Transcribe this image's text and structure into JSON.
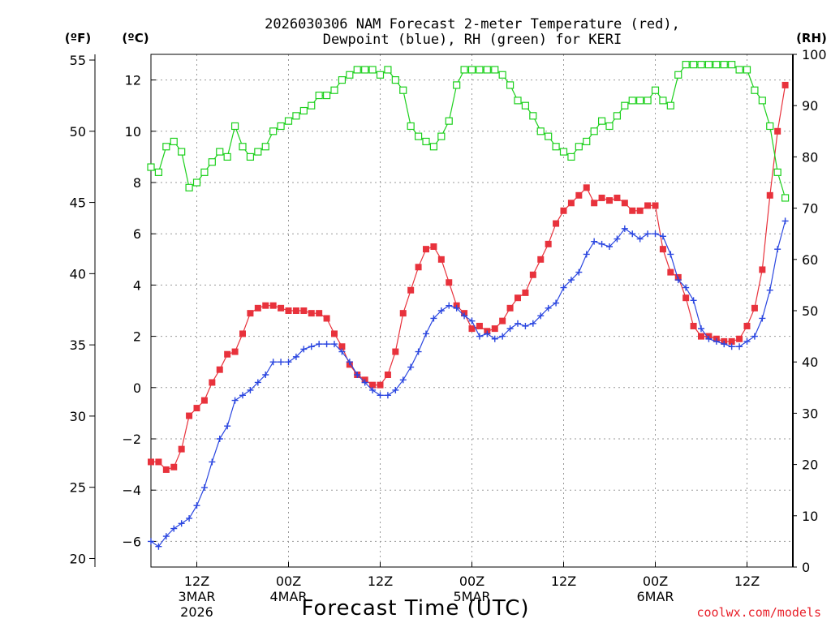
{
  "chart_data": {
    "type": "line",
    "title_line1": "2026030306 NAM Forecast 2-meter Temperature (red),",
    "title_line2": "Dewpoint (blue), RH (green) for KERI",
    "unit_left_f": "(ºF)",
    "unit_left_c": "(ºC)",
    "unit_right": "(RH)",
    "xlabel": "Forecast Time (UTC)",
    "credit": "coolwx.com/models",
    "hours_start": 6,
    "hours_end": 90,
    "ylim_c": [
      -7,
      13
    ],
    "ylim_rh": [
      0,
      100
    ],
    "y_ticks_c": [
      "-6",
      "-4",
      "-2",
      "0",
      "2",
      "4",
      "6",
      "8",
      "10",
      "12"
    ],
    "y_ticks_f": [
      "20",
      "25",
      "30",
      "35",
      "40",
      "45",
      "50",
      "55"
    ],
    "y_ticks_rh": [
      "0",
      "10",
      "20",
      "30",
      "40",
      "50",
      "60",
      "70",
      "80",
      "90",
      "100"
    ],
    "x_ticks": [
      {
        "hour": 12,
        "line1": "12Z",
        "line2": "3MAR",
        "line3": "2026"
      },
      {
        "hour": 24,
        "line1": "00Z",
        "line2": "4MAR",
        "line3": ""
      },
      {
        "hour": 36,
        "line1": "12Z",
        "line2": "",
        "line3": ""
      },
      {
        "hour": 48,
        "line1": "00Z",
        "line2": "5MAR",
        "line3": ""
      },
      {
        "hour": 60,
        "line1": "12Z",
        "line2": "",
        "line3": ""
      },
      {
        "hour": 72,
        "line1": "00Z",
        "line2": "6MAR",
        "line3": ""
      },
      {
        "hour": 84,
        "line1": "12Z",
        "line2": "",
        "line3": ""
      }
    ],
    "series": [
      {
        "name": "Temperature",
        "unit": "C",
        "color": "#e8323c",
        "marker": "filled-square",
        "values": [
          -2.9,
          -2.9,
          -3.2,
          -3.1,
          -2.4,
          -1.1,
          -0.8,
          -0.5,
          0.2,
          0.7,
          1.3,
          1.4,
          2.1,
          2.9,
          3.1,
          3.2,
          3.2,
          3.1,
          3.0,
          3.0,
          3.0,
          2.9,
          2.9,
          2.7,
          2.1,
          1.6,
          0.9,
          0.5,
          0.3,
          0.1,
          0.1,
          0.5,
          1.4,
          2.9,
          3.8,
          4.7,
          5.4,
          5.5,
          5.0,
          4.1,
          3.2,
          2.9,
          2.3,
          2.4,
          2.2,
          2.3,
          2.6,
          3.1,
          3.5,
          3.7,
          4.4,
          5.0,
          5.6,
          6.4,
          6.9,
          7.2,
          7.5,
          7.8,
          7.2,
          7.4,
          7.3,
          7.4,
          7.2,
          6.9,
          6.9,
          7.1,
          7.1,
          5.4,
          4.5,
          4.3,
          3.5,
          2.4,
          2.0,
          2.0,
          1.9,
          1.8,
          1.8,
          1.9,
          2.4,
          3.1,
          4.6,
          7.5,
          10.0,
          11.8
        ]
      },
      {
        "name": "Dewpoint",
        "unit": "C",
        "color": "#2a46e0",
        "marker": "plus",
        "values": [
          -6.0,
          -6.2,
          -5.8,
          -5.5,
          -5.3,
          -5.1,
          -4.6,
          -3.9,
          -2.9,
          -2.0,
          -1.5,
          -0.5,
          -0.3,
          -0.1,
          0.2,
          0.5,
          1.0,
          1.0,
          1.0,
          1.2,
          1.5,
          1.6,
          1.7,
          1.7,
          1.7,
          1.4,
          1.0,
          0.5,
          0.2,
          -0.1,
          -0.3,
          -0.3,
          -0.1,
          0.3,
          0.8,
          1.4,
          2.1,
          2.7,
          3.0,
          3.2,
          3.1,
          2.8,
          2.6,
          2.0,
          2.1,
          1.9,
          2.0,
          2.3,
          2.5,
          2.4,
          2.5,
          2.8,
          3.1,
          3.3,
          3.9,
          4.2,
          4.5,
          5.2,
          5.7,
          5.6,
          5.5,
          5.8,
          6.2,
          6.0,
          5.8,
          6.0,
          6.0,
          5.9,
          5.2,
          4.2,
          3.9,
          3.4,
          2.3,
          1.9,
          1.8,
          1.7,
          1.6,
          1.6,
          1.8,
          2.0,
          2.7,
          3.8,
          5.4,
          6.5
        ]
      },
      {
        "name": "RH",
        "unit": "%",
        "color": "#1cd01c",
        "marker": "open-square",
        "values": [
          78,
          77,
          82,
          83,
          81,
          74,
          75,
          77,
          79,
          81,
          80,
          86,
          82,
          80,
          81,
          82,
          85,
          86,
          87,
          88,
          89,
          90,
          92,
          92,
          93,
          95,
          96,
          97,
          97,
          97,
          96,
          97,
          95,
          93,
          86,
          84,
          83,
          82,
          84,
          87,
          94,
          97,
          97,
          97,
          97,
          97,
          96,
          94,
          91,
          90,
          88,
          85,
          84,
          82,
          81,
          80,
          82,
          83,
          85,
          87,
          86,
          88,
          90,
          91,
          91,
          91,
          93,
          91,
          90,
          96,
          98,
          98,
          98,
          98,
          98,
          98,
          98,
          97,
          97,
          93,
          91,
          86,
          77,
          72
        ]
      }
    ]
  }
}
